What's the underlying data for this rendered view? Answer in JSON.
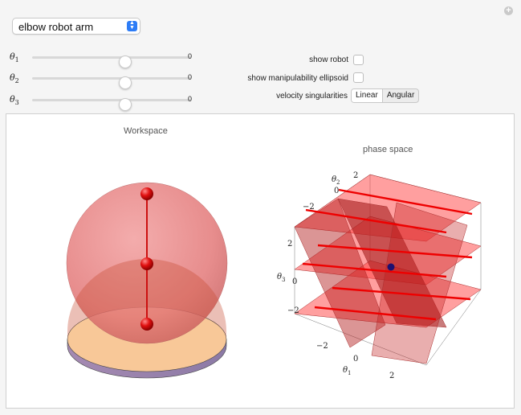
{
  "model": {
    "selected": "elbow robot arm"
  },
  "sliders": [
    {
      "symbol": "θ",
      "index": "1",
      "value": "0"
    },
    {
      "symbol": "θ",
      "index": "2",
      "value": "0"
    },
    {
      "symbol": "θ",
      "index": "3",
      "value": "0"
    }
  ],
  "options": {
    "show_robot": "show robot",
    "show_ellipsoid": "show manipulability ellipsoid",
    "velocity_singularities": "velocity singularities",
    "linear": "Linear",
    "angular": "Angular"
  },
  "workspace": {
    "title": "Workspace"
  },
  "phase": {
    "title": "phase space",
    "axis_theta1": {
      "symbol": "θ",
      "index": "1",
      "ticks": [
        "−2",
        "0",
        "2"
      ]
    },
    "axis_theta2": {
      "symbol": "θ",
      "index": "2",
      "ticks": [
        "2",
        "0",
        "−2"
      ]
    },
    "axis_theta3": {
      "symbol": "θ",
      "index": "3",
      "ticks": [
        "2",
        "0",
        "−2"
      ]
    }
  }
}
